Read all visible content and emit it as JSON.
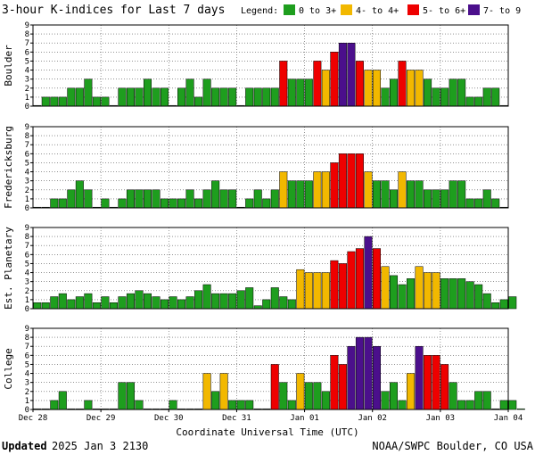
{
  "header": {
    "title": "3-hour K-indices for Last 7 days",
    "legend_label": "Legend:",
    "legend": [
      {
        "label": "0 to 3+",
        "color": "#1e9e1e"
      },
      {
        "label": "4- to 4+",
        "color": "#f2b800"
      },
      {
        "label": "5- to 6+",
        "color": "#ee0000"
      },
      {
        "label": "7- to 9",
        "color": "#4b0f8c"
      }
    ]
  },
  "chart_data": {
    "type": "bar",
    "xlabel": "Coordinate Universal Time (UTC)",
    "x_ticks": [
      "Dec 28",
      "Dec 29",
      "Dec 30",
      "Dec 31",
      "Jan 01",
      "Jan 02",
      "Jan 03",
      "Jan 04"
    ],
    "y_ticks": [
      0,
      1,
      2,
      3,
      4,
      5,
      6,
      7,
      8,
      9
    ],
    "ylim": [
      0,
      9
    ],
    "grid": true,
    "bars_per_day": 8,
    "panels": [
      {
        "name": "Boulder",
        "values": [
          0,
          1,
          1,
          1,
          2,
          2,
          3,
          1,
          1,
          0,
          2,
          2,
          2,
          3,
          2,
          2,
          0,
          2,
          3,
          1,
          3,
          2,
          2,
          2,
          0,
          2,
          2,
          2,
          2,
          5,
          3,
          3,
          3,
          5,
          4,
          6,
          7,
          7,
          5,
          4,
          4,
          2,
          3,
          5,
          4,
          4,
          3,
          2,
          2,
          3,
          3,
          1,
          1,
          2,
          2,
          0
        ]
      },
      {
        "name": "Fredericksburg",
        "values": [
          0,
          0,
          1,
          1,
          2,
          3,
          2,
          0,
          1,
          0,
          1,
          2,
          2,
          2,
          2,
          1,
          1,
          1,
          2,
          1,
          2,
          3,
          2,
          2,
          0,
          1,
          2,
          1,
          2,
          4,
          3,
          3,
          3,
          4,
          4,
          5,
          6,
          6,
          6,
          4,
          3,
          3,
          2,
          4,
          3,
          3,
          2,
          2,
          2,
          3,
          3,
          1,
          1,
          2,
          1,
          0
        ]
      },
      {
        "name": "Est. Planetary",
        "values": [
          0.67,
          0.67,
          1.33,
          1.67,
          1,
          1.33,
          1.67,
          0.67,
          1.33,
          0.67,
          1.33,
          1.67,
          2,
          1.67,
          1.33,
          1,
          1.33,
          1,
          1.33,
          2,
          2.67,
          1.67,
          1.67,
          1.67,
          2,
          2.33,
          0.33,
          1,
          2.33,
          1.33,
          1,
          4.33,
          4,
          4,
          4,
          5.33,
          5,
          6.33,
          6.67,
          8,
          6.67,
          4.67,
          3.67,
          2.67,
          3.33,
          4.67,
          4,
          4,
          3.33,
          3.33,
          3.33,
          3,
          2.67,
          1.67,
          0.67,
          1,
          1.33
        ]
      },
      {
        "name": "College",
        "values": [
          0,
          0,
          1,
          2,
          0,
          0,
          1,
          0,
          0,
          0,
          3,
          3,
          1,
          0,
          0,
          0,
          1,
          0,
          0,
          0,
          4,
          2,
          4,
          1,
          1,
          1,
          0,
          0,
          5,
          3,
          1,
          4,
          3,
          3,
          2,
          6,
          5,
          7,
          8,
          8,
          7,
          2,
          3,
          1,
          4,
          7,
          6,
          6,
          5,
          3,
          1,
          1,
          2,
          2,
          0,
          1,
          1,
          0
        ]
      }
    ]
  },
  "footer": {
    "updated_label": "Updated",
    "updated_value": "2025 Jan  3 2130",
    "credit": "NOAA/SWPC Boulder, CO USA"
  }
}
